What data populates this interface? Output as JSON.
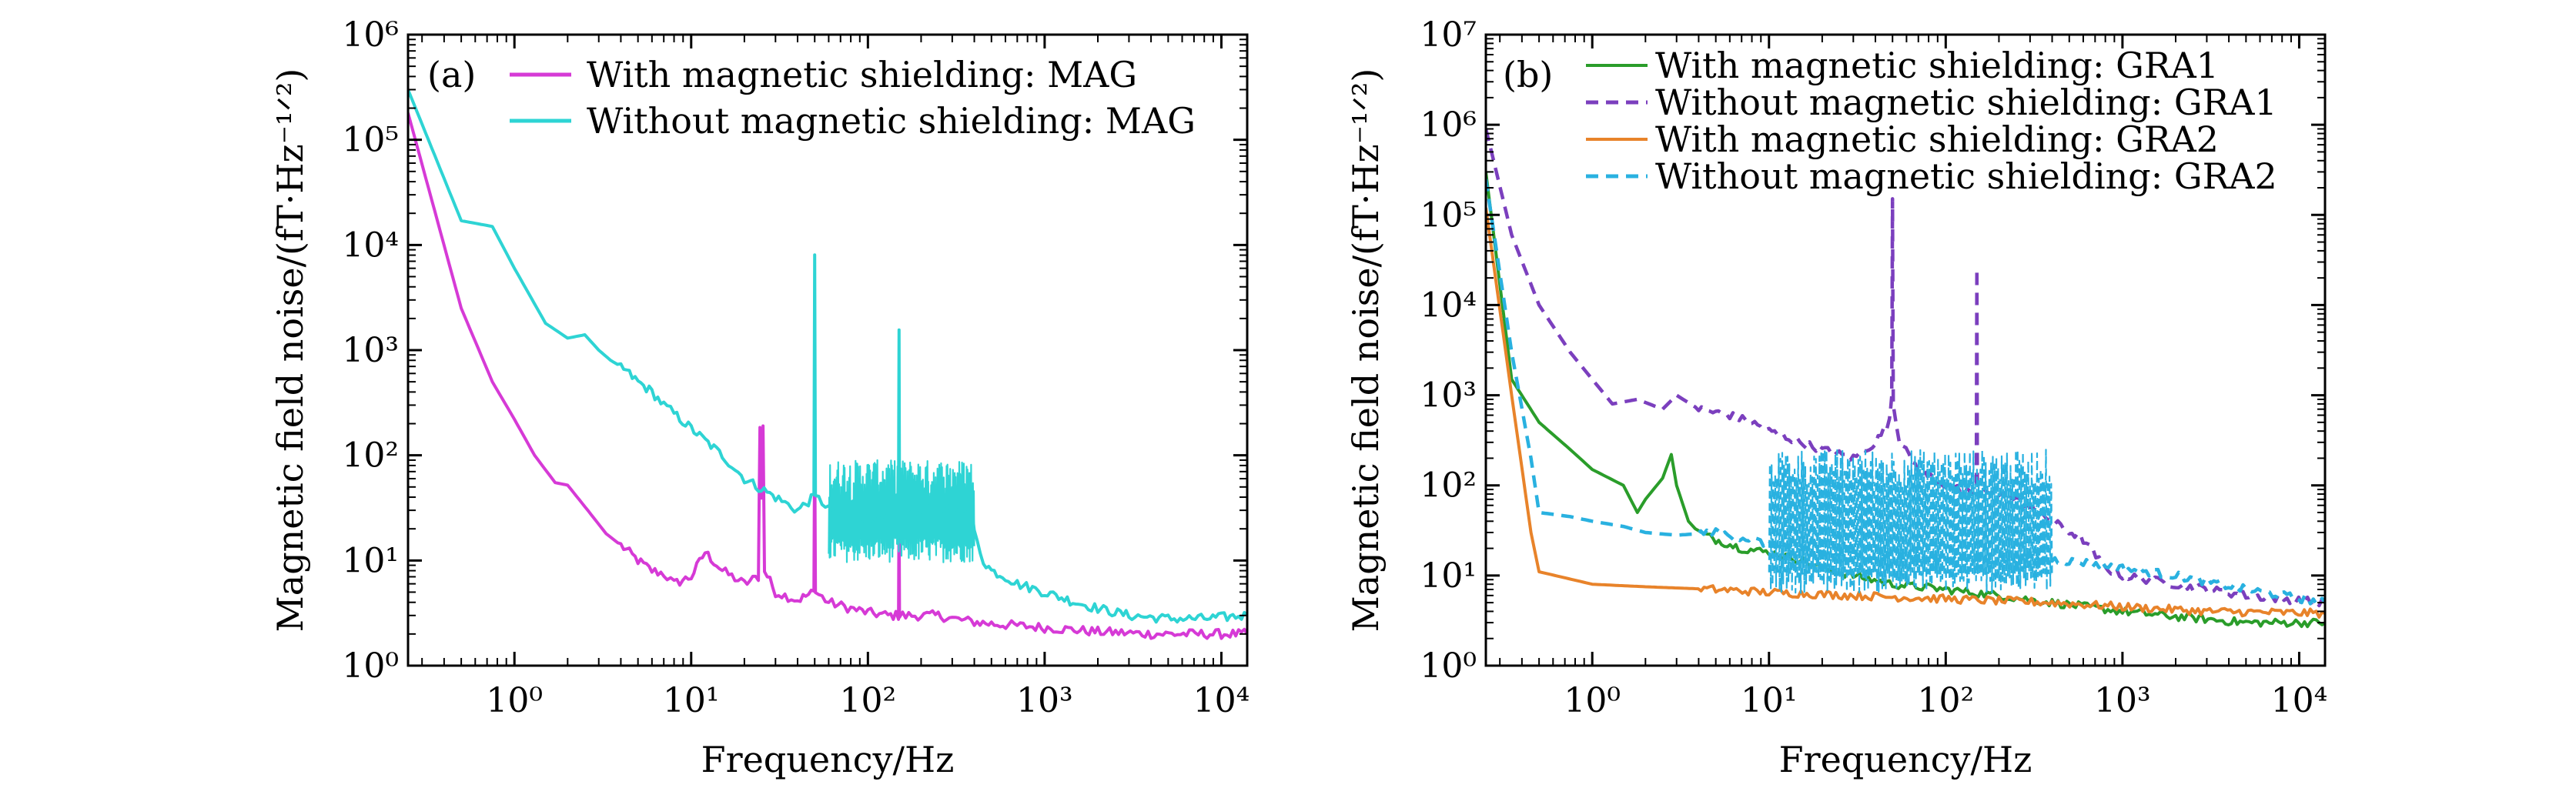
{
  "chart_data": [
    {
      "type": "line",
      "panel_label": "(a)",
      "xlabel": "Frequency/Hz",
      "ylabel": "Magnetic field noise/(fT·Hz⁻¹ᐟ²)",
      "x_scale": "log",
      "y_scale": "log",
      "xlim": [
        0.25,
        14000
      ],
      "ylim": [
        1,
        1000000
      ],
      "x_ticks": [
        1,
        10,
        100,
        1000,
        10000
      ],
      "x_tick_labels": [
        "10⁰",
        "10¹",
        "10²",
        "10³",
        "10⁴"
      ],
      "y_ticks": [
        1,
        10,
        100,
        1000,
        10000,
        100000,
        1000000
      ],
      "y_tick_labels": [
        "10⁰",
        "10¹",
        "10²",
        "10³",
        "10⁴",
        "10⁵",
        "10⁶"
      ],
      "legend_position": "top-right",
      "grid": false,
      "series": [
        {
          "name": "With magnetic shielding: MAG",
          "color": "#d63ad6",
          "dash": "solid",
          "x": [
            0.25,
            0.5,
            0.75,
            1.0,
            1.3,
            1.7,
            2.0,
            2.6,
            3.3,
            4.0,
            5.0,
            6.0,
            7.0,
            8.0,
            10.0,
            12.0,
            15.0,
            20.0,
            24.0,
            24.5,
            25.0,
            25.5,
            26.0,
            30.0,
            40.0,
            49.5,
            50.0,
            50.5,
            60.0,
            80.0,
            100.0,
            130.0,
            149.0,
            150.0,
            151.0,
            200.0,
            250.0,
            300.0,
            400.0,
            500.0,
            700.0,
            1000.0,
            2000.0,
            4000.0,
            8000.0,
            14000.0
          ],
          "y": [
            180000.0,
            2500.0,
            500.0,
            220.0,
            100.0,
            55.0,
            52.0,
            30.0,
            18.0,
            14.0,
            10.0,
            8.0,
            7.5,
            6.0,
            7.0,
            12.0,
            8.0,
            6.0,
            7.0,
            200.0,
            40.0,
            200.0,
            8.0,
            5.0,
            4.2,
            5.0,
            150.0,
            5.0,
            4.0,
            3.5,
            3.2,
            3.0,
            3.0,
            30.0,
            3.0,
            3.0,
            3.0,
            2.8,
            2.6,
            2.5,
            2.4,
            2.3,
            2.1,
            2.0,
            2.0,
            2.0
          ]
        },
        {
          "name": "Without magnetic shielding: MAG",
          "color": "#2ed4d4",
          "dash": "solid",
          "x": [
            0.25,
            0.5,
            0.75,
            1.0,
            1.5,
            2.0,
            2.5,
            3.0,
            3.5,
            4.0,
            5.0,
            6.0,
            7.0,
            8.0,
            10.0,
            15.0,
            20.0,
            30.0,
            40.0,
            49.5,
            50.0,
            50.5,
            60.0,
            80.0,
            100.0,
            130.0,
            149.0,
            150.0,
            151.0,
            200.0,
            300.0,
            390.0,
            400.0,
            450.0,
            500.0,
            600.0,
            700.0,
            1000.0,
            1500.0,
            2000.0,
            3000.0,
            5000.0,
            8000.0,
            14000.0
          ],
          "y": [
            300000.0,
            17000.0,
            15000.0,
            6000.0,
            1800.0,
            1300.0,
            1400.0,
            1000.0,
            800.0,
            700.0,
            500.0,
            400.0,
            300.0,
            250.0,
            180.0,
            100.0,
            60.0,
            40.0,
            30.0,
            40.0,
            8500.0,
            40.0,
            30.0,
            25.0,
            25.0,
            25.0,
            30.0,
            1500.0,
            30.0,
            30.0,
            30.0,
            30.0,
            18.0,
            10.0,
            8.0,
            7.0,
            6.0,
            5.0,
            4.0,
            3.5,
            3.0,
            2.8,
            2.8,
            3.0
          ]
        }
      ],
      "spike_bands": [
        {
          "series_index": 1,
          "x_from": 60.0,
          "x_to": 400.0,
          "low": 12.0,
          "high": 90.0
        }
      ]
    },
    {
      "type": "line",
      "panel_label": "(b)",
      "xlabel": "Frequency/Hz",
      "ylabel": "Magnetic field noise/(fT·Hz⁻¹ᐟ²)",
      "x_scale": "log",
      "y_scale": "log",
      "xlim": [
        0.25,
        14000
      ],
      "ylim": [
        1,
        10000000
      ],
      "x_ticks": [
        1,
        10,
        100,
        1000,
        10000
      ],
      "x_tick_labels": [
        "10⁰",
        "10¹",
        "10²",
        "10³",
        "10⁴"
      ],
      "y_ticks": [
        1,
        10,
        100,
        1000,
        10000,
        100000,
        1000000,
        10000000
      ],
      "y_tick_labels": [
        "10⁰",
        "10¹",
        "10²",
        "10³",
        "10⁴",
        "10⁵",
        "10⁶",
        "10⁷"
      ],
      "legend_position": "top-right",
      "grid": false,
      "series": [
        {
          "name": "With magnetic shielding: GRA1",
          "color": "#2a9d2a",
          "dash": "solid",
          "x": [
            0.25,
            0.35,
            0.5,
            0.75,
            1.0,
            1.5,
            1.8,
            2.0,
            2.5,
            2.8,
            3.0,
            3.5,
            4.0,
            5.0,
            7.0,
            10.0,
            15.0,
            20.0,
            30.0,
            50.0,
            100.0,
            200.0,
            400.0,
            1000.0,
            2000.0,
            5000.0,
            14000.0
          ],
          "y": [
            300000.0,
            1500.0,
            500.0,
            250.0,
            150.0,
            100.0,
            50.0,
            70.0,
            120.0,
            220.0,
            100.0,
            40.0,
            30.0,
            25.0,
            20.0,
            18.0,
            15.0,
            12.0,
            10.0,
            8.0,
            7.0,
            6.0,
            5.0,
            4.0,
            3.5,
            3.0,
            3.0
          ]
        },
        {
          "name": "Without magnetic shielding: GRA1",
          "color": "#7b3fbe",
          "dash": "dashed",
          "x": [
            0.25,
            0.35,
            0.5,
            0.75,
            1.0,
            1.3,
            1.8,
            2.5,
            3.0,
            4.0,
            6.0,
            8.0,
            10.0,
            15.0,
            20.0,
            30.0,
            40.0,
            48.0,
            49.5,
            50.0,
            50.5,
            55.0,
            70.0,
            100.0,
            140.0,
            149.0,
            150.0,
            151.0,
            200.0,
            300.0,
            400.0,
            600.0,
            800.0,
            1000.0,
            2000.0,
            5000.0,
            14000.0
          ],
          "y": [
            900000.0,
            60000.0,
            10000.0,
            3000.0,
            1500.0,
            800.0,
            900.0,
            700.0,
            1000.0,
            700.0,
            600.0,
            500.0,
            400.0,
            300.0,
            250.0,
            200.0,
            300.0,
            500.0,
            1000.0,
            150000.0,
            800.0,
            300.0,
            150.0,
            100.0,
            80.0,
            100.0,
            25000.0,
            100.0,
            80.0,
            60.0,
            40.0,
            25.0,
            12.0,
            10.0,
            8.0,
            6.0,
            5.0
          ]
        },
        {
          "name": "With magnetic shielding: GRA2",
          "color": "#e8832a",
          "dash": "solid",
          "x": [
            0.25,
            0.35,
            0.45,
            0.5,
            1.0,
            2.0,
            5.0,
            10.0,
            30.0,
            100.0,
            400.0,
            1000.0,
            3000.0,
            14000.0
          ],
          "y": [
            120000.0,
            1000.0,
            30.0,
            11.0,
            8.0,
            7.5,
            7.0,
            6.5,
            6.0,
            5.5,
            5.0,
            4.5,
            4.0,
            3.8
          ]
        },
        {
          "name": "Without magnetic shielding: GRA2",
          "color": "#29b1e0",
          "dash": "dashed",
          "x": [
            0.25,
            0.35,
            0.45,
            0.5,
            0.75,
            1.0,
            1.5,
            2.0,
            3.0,
            5.0,
            8.0,
            10.0,
            15.0,
            20.0,
            30.0,
            50.0,
            100.0,
            200.0,
            400.0,
            600.0,
            800.0,
            1000.0,
            2000.0,
            5000.0,
            14000.0
          ],
          "y": [
            250000.0,
            3000.0,
            200.0,
            50.0,
            45.0,
            40.0,
            35.0,
            30.0,
            28.0,
            30.0,
            25.0,
            22.0,
            20.0,
            18.0,
            17.0,
            16.0,
            15.0,
            15.0,
            15.0,
            14.0,
            13.0,
            12.0,
            10.0,
            7.0,
            5.0
          ]
        }
      ],
      "spike_bands": [
        {
          "series_index": 3,
          "x_from": 10.0,
          "x_to": 400.0,
          "low": 8.0,
          "high": 250.0
        }
      ]
    }
  ]
}
